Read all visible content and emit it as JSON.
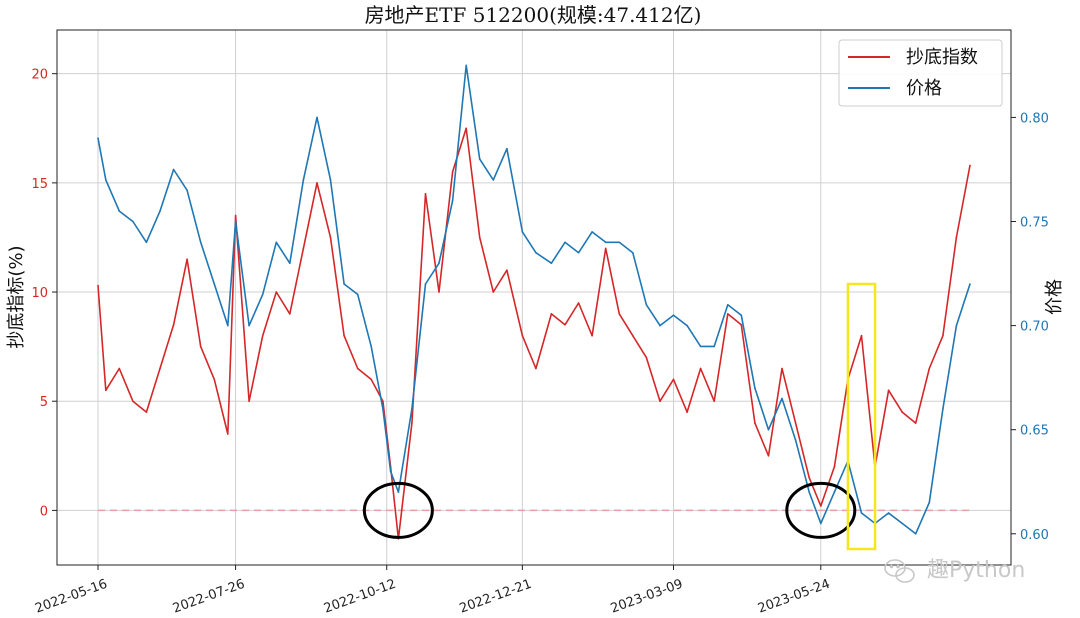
{
  "chart_data": {
    "type": "line",
    "title": "房地产ETF  512200(规模:47.412亿)",
    "ylabel_left": "抄底指标(%)",
    "ylabel_right": "价格",
    "ylim_left": [
      -2.5,
      22
    ],
    "ylim_right": [
      0.585,
      0.842
    ],
    "yticks_left": [
      0,
      5,
      10,
      15,
      20
    ],
    "yticks_right": [
      0.6,
      0.65,
      0.7,
      0.75,
      0.8
    ],
    "xticks": [
      "2022-05-16",
      "2022-07-26",
      "2022-10-12",
      "2022-12-21",
      "2023-03-09",
      "2023-05-24"
    ],
    "grid": true,
    "legend_position": "top-right",
    "colors": {
      "signal": "#d62728",
      "price": "#1f77b4",
      "highlight_box": "#f5e71b",
      "circle": "#000000",
      "zero_line": "#e8a0a0"
    },
    "series": [
      {
        "name": "抄底指数",
        "axis": "left",
        "x": [
          "2022-05-16",
          "2022-05-20",
          "2022-05-27",
          "2022-06-03",
          "2022-06-10",
          "2022-06-17",
          "2022-06-24",
          "2022-07-01",
          "2022-07-08",
          "2022-07-15",
          "2022-07-22",
          "2022-07-26",
          "2022-08-02",
          "2022-08-09",
          "2022-08-16",
          "2022-08-23",
          "2022-08-30",
          "2022-09-06",
          "2022-09-13",
          "2022-09-20",
          "2022-09-27",
          "2022-10-04",
          "2022-10-10",
          "2022-10-14",
          "2022-10-18",
          "2022-10-25",
          "2022-11-01",
          "2022-11-08",
          "2022-11-15",
          "2022-11-22",
          "2022-11-29",
          "2022-12-06",
          "2022-12-13",
          "2022-12-21",
          "2022-12-28",
          "2023-01-05",
          "2023-01-12",
          "2023-01-19",
          "2023-01-26",
          "2023-02-02",
          "2023-02-09",
          "2023-02-16",
          "2023-02-23",
          "2023-03-02",
          "2023-03-09",
          "2023-03-16",
          "2023-03-23",
          "2023-03-30",
          "2023-04-06",
          "2023-04-13",
          "2023-04-20",
          "2023-04-27",
          "2023-05-04",
          "2023-05-11",
          "2023-05-18",
          "2023-05-24",
          "2023-05-31",
          "2023-06-07",
          "2023-06-14",
          "2023-06-21",
          "2023-06-28",
          "2023-07-05",
          "2023-07-12",
          "2023-07-19",
          "2023-07-26",
          "2023-08-02",
          "2023-08-09"
        ],
        "values": [
          10.3,
          5.5,
          6.5,
          5.0,
          4.5,
          6.5,
          8.5,
          11.5,
          7.5,
          6.0,
          3.5,
          13.5,
          5.0,
          8.0,
          10.0,
          9.0,
          12.0,
          15.0,
          12.5,
          8.0,
          6.5,
          6.0,
          5.0,
          2.0,
          -1.3,
          4.0,
          14.5,
          10.0,
          15.5,
          17.5,
          12.5,
          10.0,
          11.0,
          8.0,
          6.5,
          9.0,
          8.5,
          9.5,
          8.0,
          12.0,
          9.0,
          8.0,
          7.0,
          5.0,
          6.0,
          4.5,
          6.5,
          5.0,
          9.0,
          8.5,
          4.0,
          2.5,
          6.5,
          4.0,
          1.5,
          0.2,
          2.0,
          6.0,
          8.0,
          2.0,
          5.5,
          4.5,
          4.0,
          6.5,
          8.0,
          12.5,
          15.8
        ]
      },
      {
        "name": "价格",
        "axis": "right",
        "x": [
          "2022-05-16",
          "2022-05-20",
          "2022-05-27",
          "2022-06-03",
          "2022-06-10",
          "2022-06-17",
          "2022-06-24",
          "2022-07-01",
          "2022-07-08",
          "2022-07-15",
          "2022-07-22",
          "2022-07-26",
          "2022-08-02",
          "2022-08-09",
          "2022-08-16",
          "2022-08-23",
          "2022-08-30",
          "2022-09-06",
          "2022-09-13",
          "2022-09-20",
          "2022-09-27",
          "2022-10-04",
          "2022-10-10",
          "2022-10-14",
          "2022-10-18",
          "2022-10-25",
          "2022-11-01",
          "2022-11-08",
          "2022-11-15",
          "2022-11-22",
          "2022-11-29",
          "2022-12-06",
          "2022-12-13",
          "2022-12-21",
          "2022-12-28",
          "2023-01-05",
          "2023-01-12",
          "2023-01-19",
          "2023-01-26",
          "2023-02-02",
          "2023-02-09",
          "2023-02-16",
          "2023-02-23",
          "2023-03-02",
          "2023-03-09",
          "2023-03-16",
          "2023-03-23",
          "2023-03-30",
          "2023-04-06",
          "2023-04-13",
          "2023-04-20",
          "2023-04-27",
          "2023-05-04",
          "2023-05-11",
          "2023-05-18",
          "2023-05-24",
          "2023-05-31",
          "2023-06-07",
          "2023-06-14",
          "2023-06-21",
          "2023-06-28",
          "2023-07-05",
          "2023-07-12",
          "2023-07-19",
          "2023-07-26",
          "2023-08-02",
          "2023-08-09"
        ],
        "values": [
          0.79,
          0.77,
          0.755,
          0.75,
          0.74,
          0.755,
          0.775,
          0.765,
          0.74,
          0.72,
          0.7,
          0.75,
          0.7,
          0.715,
          0.74,
          0.73,
          0.77,
          0.8,
          0.77,
          0.72,
          0.715,
          0.69,
          0.66,
          0.63,
          0.62,
          0.66,
          0.72,
          0.73,
          0.76,
          0.825,
          0.78,
          0.77,
          0.785,
          0.745,
          0.735,
          0.73,
          0.74,
          0.735,
          0.745,
          0.74,
          0.74,
          0.735,
          0.71,
          0.7,
          0.705,
          0.7,
          0.69,
          0.69,
          0.71,
          0.705,
          0.67,
          0.65,
          0.665,
          0.645,
          0.62,
          0.605,
          0.62,
          0.635,
          0.61,
          0.605,
          0.61,
          0.605,
          0.6,
          0.615,
          0.66,
          0.7,
          0.72
        ]
      }
    ],
    "annotations": [
      {
        "type": "circle",
        "center_x": "2022-10-18",
        "center_y_left": 0
      },
      {
        "type": "circle",
        "center_x": "2023-05-24",
        "center_y_left": 0
      },
      {
        "type": "rectangle",
        "x_from": "2023-06-07",
        "x_to": "2023-06-21"
      }
    ]
  },
  "watermark": {
    "icon": "wechat-icon",
    "text": "趣Python"
  }
}
